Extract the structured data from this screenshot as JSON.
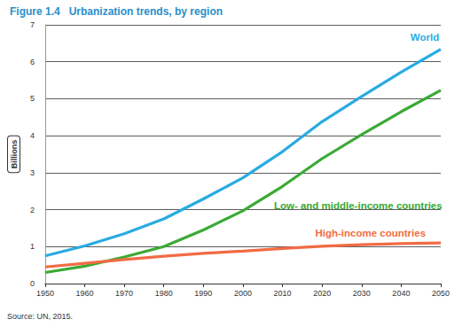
{
  "chart_data": {
    "type": "line",
    "title": "Figure 1.4   Urbanization trends, by region",
    "y_label": "Billions",
    "annotations": [
      "Source: UN, 2015."
    ],
    "x": [
      1950,
      1960,
      1970,
      1980,
      1990,
      2000,
      2010,
      2020,
      2030,
      2040,
      2050
    ],
    "xlim": [
      1950,
      2050
    ],
    "xticks": [
      1950,
      1960,
      1970,
      1980,
      1990,
      2000,
      2010,
      2020,
      2030,
      2040,
      2050
    ],
    "ylim": [
      0,
      7
    ],
    "yticks": [
      0,
      1,
      2,
      3,
      4,
      5,
      6,
      7
    ],
    "grid": true,
    "marker": "none",
    "line_style": "solid",
    "series": [
      {
        "name": "World",
        "color": "#29abe2",
        "values": [
          0.75,
          1.02,
          1.35,
          1.75,
          2.29,
          2.86,
          3.57,
          4.38,
          5.06,
          5.72,
          6.34
        ]
      },
      {
        "name": "Low- and middle-income countries",
        "color": "#3aaa35",
        "values": [
          0.3,
          0.47,
          0.72,
          1.0,
          1.45,
          1.97,
          2.63,
          3.38,
          4.03,
          4.65,
          5.23
        ]
      },
      {
        "name": "High-income countries",
        "color": "#f26b43",
        "values": [
          0.45,
          0.55,
          0.65,
          0.74,
          0.82,
          0.88,
          0.95,
          1.01,
          1.05,
          1.08,
          1.1
        ]
      }
    ]
  }
}
